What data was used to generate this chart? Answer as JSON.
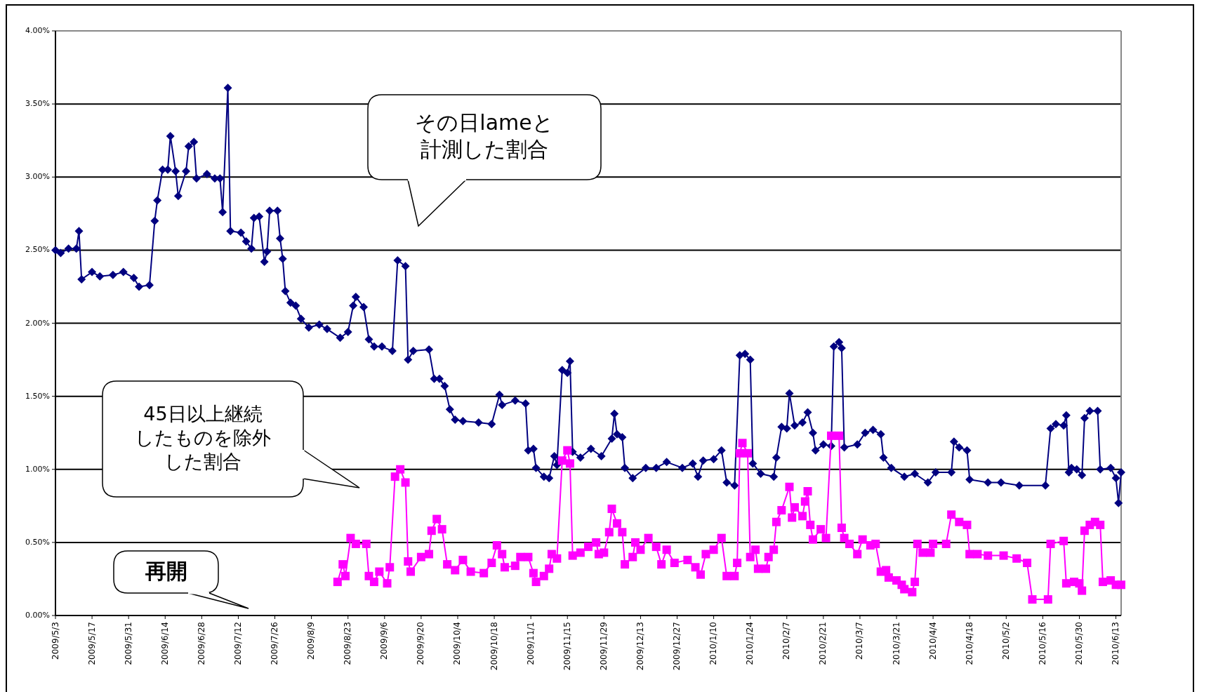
{
  "chart_data": {
    "type": "line",
    "xlim": [
      "2009-05-03",
      "2010-06-15"
    ],
    "xticks": [
      {
        "value": "2009-05-03",
        "label": "2009/5/3"
      },
      {
        "value": "2009-05-17",
        "label": "2009/5/17"
      },
      {
        "value": "2009-05-31",
        "label": "2009/5/31"
      },
      {
        "value": "2009-06-14",
        "label": "2009/6/14"
      },
      {
        "value": "2009-06-28",
        "label": "2009/6/28"
      },
      {
        "value": "2009-07-12",
        "label": "2009/7/12"
      },
      {
        "value": "2009-07-26",
        "label": "2009/7/26"
      },
      {
        "value": "2009-08-09",
        "label": "2009/8/9"
      },
      {
        "value": "2009-08-23",
        "label": "2009/8/23"
      },
      {
        "value": "2009-09-06",
        "label": "2009/9/6"
      },
      {
        "value": "2009-09-20",
        "label": "2009/9/20"
      },
      {
        "value": "2009-10-04",
        "label": "2009/10/4"
      },
      {
        "value": "2009-10-18",
        "label": "2009/10/18"
      },
      {
        "value": "2009-11-01",
        "label": "2009/11/1"
      },
      {
        "value": "2009-11-15",
        "label": "2009/11/15"
      },
      {
        "value": "2009-11-29",
        "label": "2009/11/29"
      },
      {
        "value": "2009-12-13",
        "label": "2009/12/13"
      },
      {
        "value": "2009-12-27",
        "label": "2009/12/27"
      },
      {
        "value": "2010-01-10",
        "label": "2010/1/10"
      },
      {
        "value": "2010-01-24",
        "label": "2010/1/24"
      },
      {
        "value": "2010-02-07",
        "label": "2010/2/7"
      },
      {
        "value": "2010-02-21",
        "label": "2010/2/21"
      },
      {
        "value": "2010-03-07",
        "label": "2010/3/7"
      },
      {
        "value": "2010-03-21",
        "label": "2010/3/21"
      },
      {
        "value": "2010-04-04",
        "label": "2010/4/4"
      },
      {
        "value": "2010-04-18",
        "label": "2010/4/18"
      },
      {
        "value": "2010-05-02",
        "label": "2010/5/2"
      },
      {
        "value": "2010-05-16",
        "label": "2010/5/16"
      },
      {
        "value": "2010-05-30",
        "label": "2010/5/30"
      },
      {
        "value": "2010-06-13",
        "label": "2010/6/13"
      }
    ],
    "ylim": [
      0,
      4
    ],
    "yticks": [
      {
        "value": 0,
        "label": "0.00%"
      },
      {
        "value": 0.5,
        "label": "0.50%"
      },
      {
        "value": 1,
        "label": "1.00%"
      },
      {
        "value": 1.5,
        "label": "1.50%"
      },
      {
        "value": 2,
        "label": "2.00%"
      },
      {
        "value": 2.5,
        "label": "2.50%"
      },
      {
        "value": 3,
        "label": "3.00%"
      },
      {
        "value": 3.5,
        "label": "3.50%"
      },
      {
        "value": 4,
        "label": "4.00%"
      }
    ],
    "grid": "y",
    "annotations": [
      "その日lameと計測した割合",
      "45日以上継続したものを除外した割合",
      "再開"
    ],
    "series": [
      {
        "color": "#000080",
        "marker": "diamond",
        "x": [
          "2009-05-03",
          "2009-05-05",
          "2009-05-08",
          "2009-05-11",
          "2009-05-12",
          "2009-05-13",
          "2009-05-17",
          "2009-05-20",
          "2009-05-25",
          "2009-05-29",
          "2009-06-02",
          "2009-06-04",
          "2009-06-08",
          "2009-06-10",
          "2009-06-11",
          "2009-06-13",
          "2009-06-15",
          "2009-06-16",
          "2009-06-18",
          "2009-06-19",
          "2009-06-22",
          "2009-06-23",
          "2009-06-25",
          "2009-06-26",
          "2009-06-30",
          "2009-07-03",
          "2009-07-05",
          "2009-07-06",
          "2009-07-08",
          "2009-07-09",
          "2009-07-13",
          "2009-07-15",
          "2009-07-17",
          "2009-07-18",
          "2009-07-20",
          "2009-07-22",
          "2009-07-23",
          "2009-07-24",
          "2009-07-27",
          "2009-07-28",
          "2009-07-29",
          "2009-07-30",
          "2009-08-01",
          "2009-08-03",
          "2009-08-05",
          "2009-08-08",
          "2009-08-12",
          "2009-08-15",
          "2009-08-20",
          "2009-08-23",
          "2009-08-25",
          "2009-08-26",
          "2009-08-29",
          "2009-08-31",
          "2009-09-02",
          "2009-09-05",
          "2009-09-09",
          "2009-09-11",
          "2009-09-14",
          "2009-09-15",
          "2009-09-17",
          "2009-09-23",
          "2009-09-25",
          "2009-09-27",
          "2009-09-29",
          "2009-10-01",
          "2009-10-03",
          "2009-10-06",
          "2009-10-12",
          "2009-10-17",
          "2009-10-20",
          "2009-10-21",
          "2009-10-26",
          "2009-10-30",
          "2009-10-31",
          "2009-11-02",
          "2009-11-03",
          "2009-11-06",
          "2009-11-08",
          "2009-11-10",
          "2009-11-11",
          "2009-11-13",
          "2009-11-15",
          "2009-11-16",
          "2009-11-17",
          "2009-11-20",
          "2009-11-24",
          "2009-11-28",
          "2009-12-02",
          "2009-12-03",
          "2009-12-04",
          "2009-12-06",
          "2009-12-07",
          "2009-12-10",
          "2009-12-15",
          "2009-12-19",
          "2009-12-23",
          "2009-12-29",
          "2010-01-02",
          "2010-01-04",
          "2010-01-06",
          "2010-01-10",
          "2010-01-13",
          "2010-01-15",
          "2010-01-18",
          "2010-01-20",
          "2010-01-22",
          "2010-01-24",
          "2010-01-25",
          "2010-01-28",
          "2010-02-02",
          "2010-02-03",
          "2010-02-05",
          "2010-02-07",
          "2010-02-08",
          "2010-02-10",
          "2010-02-13",
          "2010-02-15",
          "2010-02-17",
          "2010-02-18",
          "2010-02-21",
          "2010-02-24",
          "2010-02-25",
          "2010-02-27",
          "2010-02-28",
          "2010-03-01",
          "2010-03-06",
          "2010-03-09",
          "2010-03-12",
          "2010-03-15",
          "2010-03-16",
          "2010-03-19",
          "2010-03-24",
          "2010-03-28",
          "2010-04-02",
          "2010-04-05",
          "2010-04-11",
          "2010-04-12",
          "2010-04-14",
          "2010-04-17",
          "2010-04-18",
          "2010-04-25",
          "2010-04-30",
          "2010-05-07",
          "2010-05-17",
          "2010-05-19",
          "2010-05-21",
          "2010-05-24",
          "2010-05-25",
          "2010-05-26",
          "2010-05-27",
          "2010-05-29",
          "2010-05-31",
          "2010-06-01",
          "2010-06-03",
          "2010-06-06",
          "2010-06-07",
          "2010-06-11",
          "2010-06-13",
          "2010-06-14",
          "2010-06-15"
        ],
        "values": [
          2.5,
          2.48,
          2.51,
          2.51,
          2.63,
          2.3,
          2.35,
          2.32,
          2.33,
          2.35,
          2.31,
          2.25,
          2.26,
          2.7,
          2.84,
          3.05,
          3.05,
          3.28,
          3.04,
          2.87,
          3.04,
          3.21,
          3.24,
          2.99,
          3.02,
          2.99,
          2.99,
          2.76,
          3.61,
          2.63,
          2.62,
          2.56,
          2.51,
          2.72,
          2.73,
          2.42,
          2.49,
          2.77,
          2.77,
          2.58,
          2.44,
          2.22,
          2.14,
          2.12,
          2.03,
          1.97,
          1.99,
          1.96,
          1.9,
          1.94,
          2.12,
          2.18,
          2.11,
          1.89,
          1.84,
          1.84,
          1.81,
          2.43,
          2.39,
          1.75,
          1.81,
          1.82,
          1.62,
          1.62,
          1.57,
          1.41,
          1.34,
          1.33,
          1.32,
          1.31,
          1.51,
          1.44,
          1.47,
          1.45,
          1.13,
          1.14,
          1.01,
          0.95,
          0.94,
          1.09,
          1.03,
          1.68,
          1.66,
          1.74,
          1.12,
          1.08,
          1.14,
          1.09,
          1.21,
          1.38,
          1.24,
          1.22,
          1.01,
          0.94,
          1.01,
          1.01,
          1.05,
          1.01,
          1.04,
          0.95,
          1.06,
          1.07,
          1.13,
          0.91,
          0.89,
          1.78,
          1.79,
          1.75,
          1.04,
          0.97,
          0.95,
          1.08,
          1.29,
          1.28,
          1.52,
          1.3,
          1.32,
          1.39,
          1.25,
          1.13,
          1.17,
          1.16,
          1.84,
          1.87,
          1.83,
          1.15,
          1.17,
          1.25,
          1.27,
          1.24,
          1.08,
          1.01,
          0.95,
          0.97,
          0.91,
          0.98,
          0.98,
          1.19,
          1.15,
          1.13,
          0.93,
          0.91,
          0.91,
          0.89,
          0.89,
          1.28,
          1.31,
          1.3,
          1.37,
          0.98,
          1.01,
          1.0,
          0.96,
          1.35,
          1.4,
          1.4,
          1.0,
          1.01,
          0.94,
          0.77,
          0.98
        ]
      },
      {
        "color": "#ff00ff",
        "marker": "square",
        "x": [
          "2009-08-19",
          "2009-08-21",
          "2009-08-22",
          "2009-08-24",
          "2009-08-26",
          "2009-08-30",
          "2009-08-31",
          "2009-09-02",
          "2009-09-04",
          "2009-09-07",
          "2009-09-08",
          "2009-09-10",
          "2009-09-12",
          "2009-09-14",
          "2009-09-15",
          "2009-09-16",
          "2009-09-20",
          "2009-09-23",
          "2009-09-24",
          "2009-09-26",
          "2009-09-28",
          "2009-09-30",
          "2009-10-03",
          "2009-10-06",
          "2009-10-09",
          "2009-10-14",
          "2009-10-17",
          "2009-10-19",
          "2009-10-21",
          "2009-10-22",
          "2009-10-26",
          "2009-10-28",
          "2009-10-31",
          "2009-11-02",
          "2009-11-03",
          "2009-11-06",
          "2009-11-08",
          "2009-11-09",
          "2009-11-11",
          "2009-11-13",
          "2009-11-15",
          "2009-11-16",
          "2009-11-17",
          "2009-11-20",
          "2009-11-23",
          "2009-11-26",
          "2009-11-27",
          "2009-11-29",
          "2009-12-01",
          "2009-12-02",
          "2009-12-04",
          "2009-12-06",
          "2009-12-07",
          "2009-12-10",
          "2009-12-11",
          "2009-12-13",
          "2009-12-16",
          "2009-12-19",
          "2009-12-21",
          "2009-12-23",
          "2009-12-26",
          "2009-12-31",
          "2010-01-03",
          "2010-01-05",
          "2010-01-07",
          "2010-01-10",
          "2010-01-13",
          "2010-01-15",
          "2010-01-18",
          "2010-01-19",
          "2010-01-20",
          "2010-01-21",
          "2010-01-23",
          "2010-01-24",
          "2010-01-26",
          "2010-01-27",
          "2010-01-30",
          "2010-01-31",
          "2010-02-02",
          "2010-02-03",
          "2010-02-05",
          "2010-02-08",
          "2010-02-09",
          "2010-02-10",
          "2010-02-13",
          "2010-02-14",
          "2010-02-15",
          "2010-02-16",
          "2010-02-17",
          "2010-02-20",
          "2010-02-22",
          "2010-02-24",
          "2010-02-27",
          "2010-02-28",
          "2010-03-01",
          "2010-03-03",
          "2010-03-06",
          "2010-03-08",
          "2010-03-11",
          "2010-03-13",
          "2010-03-15",
          "2010-03-17",
          "2010-03-18",
          "2010-03-21",
          "2010-03-23",
          "2010-03-24",
          "2010-03-27",
          "2010-03-28",
          "2010-03-29",
          "2010-03-31",
          "2010-04-03",
          "2010-04-04",
          "2010-04-09",
          "2010-04-11",
          "2010-04-14",
          "2010-04-17",
          "2010-04-18",
          "2010-04-21",
          "2010-04-25",
          "2010-05-01",
          "2010-05-06",
          "2010-05-10",
          "2010-05-12",
          "2010-05-18",
          "2010-05-19",
          "2010-05-24",
          "2010-05-25",
          "2010-05-28",
          "2010-05-30",
          "2010-05-31",
          "2010-06-01",
          "2010-06-03",
          "2010-06-05",
          "2010-06-07",
          "2010-06-08",
          "2010-06-11",
          "2010-06-13",
          "2010-06-15"
        ],
        "values": [
          0.23,
          0.35,
          0.27,
          0.53,
          0.49,
          0.49,
          0.27,
          0.23,
          0.3,
          0.22,
          0.33,
          0.95,
          1.0,
          0.91,
          0.37,
          0.3,
          0.4,
          0.42,
          0.58,
          0.66,
          0.59,
          0.35,
          0.31,
          0.38,
          0.3,
          0.29,
          0.36,
          0.48,
          0.42,
          0.33,
          0.34,
          0.4,
          0.4,
          0.29,
          0.23,
          0.27,
          0.32,
          0.42,
          0.39,
          1.06,
          1.13,
          1.04,
          0.41,
          0.43,
          0.47,
          0.5,
          0.42,
          0.43,
          0.57,
          0.73,
          0.63,
          0.57,
          0.35,
          0.4,
          0.5,
          0.45,
          0.53,
          0.47,
          0.35,
          0.45,
          0.36,
          0.38,
          0.33,
          0.28,
          0.42,
          0.45,
          0.53,
          0.27,
          0.27,
          0.36,
          1.11,
          1.18,
          1.11,
          0.4,
          0.45,
          0.32,
          0.32,
          0.4,
          0.45,
          0.64,
          0.72,
          0.88,
          0.67,
          0.74,
          0.68,
          0.78,
          0.85,
          0.62,
          0.52,
          0.59,
          0.53,
          1.23,
          1.23,
          0.6,
          0.53,
          0.49,
          0.42,
          0.52,
          0.48,
          0.49,
          0.3,
          0.31,
          0.26,
          0.24,
          0.21,
          0.18,
          0.16,
          0.23,
          0.49,
          0.43,
          0.43,
          0.49,
          0.49,
          0.69,
          0.64,
          0.62,
          0.42,
          0.42,
          0.41,
          0.41,
          0.39,
          0.36,
          0.11,
          0.11,
          0.49,
          0.51,
          0.22,
          0.23,
          0.22,
          0.17,
          0.58,
          0.62,
          0.64,
          0.62,
          0.23,
          0.24,
          0.21,
          0.21
        ]
      }
    ]
  }
}
